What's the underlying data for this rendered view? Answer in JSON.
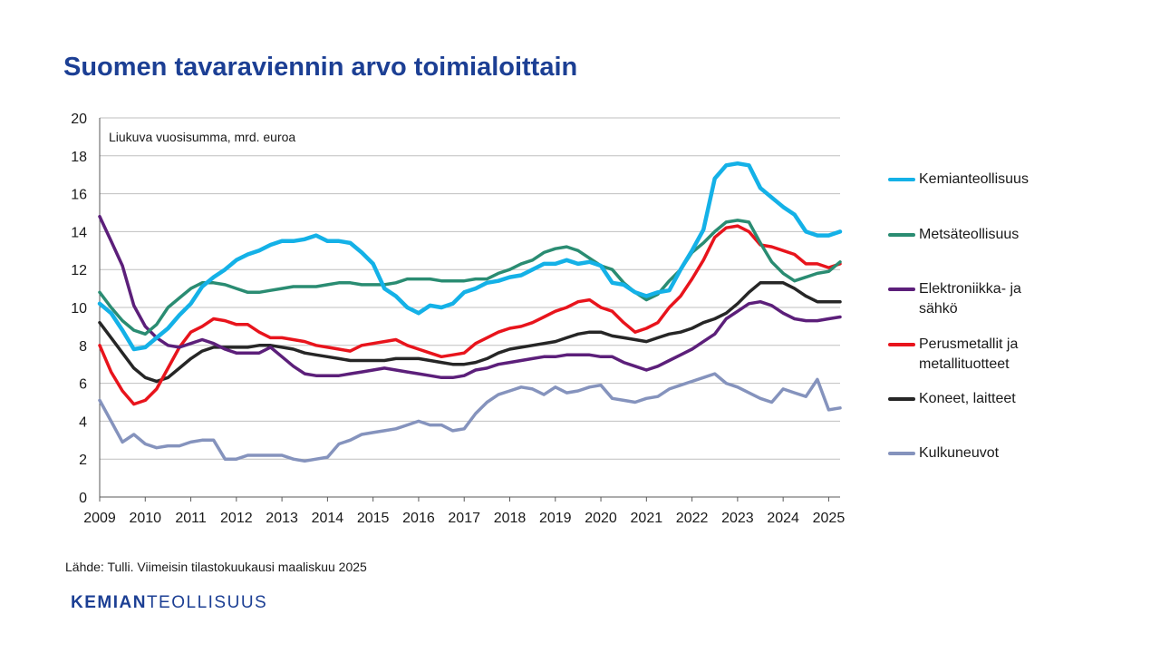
{
  "title": "Suomen tavaraviennin arvo toimialoittain",
  "source": "Lähde: Tulli. Viimeisin tilastokuukausi maaliskuu 2025",
  "logo": {
    "bold": "KEMIAN",
    "light": "TEOLLISUUS"
  },
  "chart_data": {
    "type": "line",
    "title": "Suomen tavaraviennin arvo toimialoittain",
    "annotation": "Liukuva vuosisumma, mrd. euroa",
    "ylim": [
      0,
      20
    ],
    "yticks": [
      "0",
      "2",
      "4",
      "6",
      "8",
      "10",
      "12",
      "14",
      "16",
      "18",
      "20"
    ],
    "xlim": [
      2009.0,
      2025.25
    ],
    "xticks": [
      "2009",
      "2010",
      "2011",
      "2012",
      "2013",
      "2014",
      "2015",
      "2016",
      "2017",
      "2018",
      "2019",
      "2020",
      "2021",
      "2022",
      "2023",
      "2024",
      "2025"
    ],
    "grid": true,
    "legend_position": "right",
    "series": [
      {
        "name": "Kemianteollisuus",
        "color": "#14b1e7",
        "x": [
          2009.0,
          2009.25,
          2009.5,
          2009.75,
          2010.0,
          2010.25,
          2010.5,
          2010.75,
          2011.0,
          2011.25,
          2011.5,
          2011.75,
          2012.0,
          2012.25,
          2012.5,
          2012.75,
          2013.0,
          2013.25,
          2013.5,
          2013.75,
          2014.0,
          2014.25,
          2014.5,
          2014.75,
          2015.0,
          2015.25,
          2015.5,
          2015.75,
          2016.0,
          2016.25,
          2016.5,
          2016.75,
          2017.0,
          2017.25,
          2017.5,
          2017.75,
          2018.0,
          2018.25,
          2018.5,
          2018.75,
          2019.0,
          2019.25,
          2019.5,
          2019.75,
          2020.0,
          2020.25,
          2020.5,
          2020.75,
          2021.0,
          2021.25,
          2021.5,
          2021.75,
          2022.0,
          2022.25,
          2022.5,
          2022.75,
          2023.0,
          2023.25,
          2023.5,
          2023.75,
          2024.0,
          2024.25,
          2024.5,
          2024.75,
          2025.0,
          2025.25
        ],
        "values": [
          10.2,
          9.7,
          8.8,
          7.8,
          7.9,
          8.4,
          8.9,
          9.6,
          10.2,
          11.1,
          11.6,
          12.0,
          12.5,
          12.8,
          13.0,
          13.3,
          13.5,
          13.5,
          13.6,
          13.8,
          13.5,
          13.5,
          13.4,
          12.9,
          12.3,
          11.0,
          10.6,
          10.0,
          9.7,
          10.1,
          10.0,
          10.2,
          10.8,
          11.0,
          11.3,
          11.4,
          11.6,
          11.7,
          12.0,
          12.3,
          12.3,
          12.5,
          12.3,
          12.4,
          12.2,
          11.3,
          11.2,
          10.8,
          10.6,
          10.8,
          10.9,
          12.0,
          13.0,
          14.1,
          16.8,
          17.5,
          17.6,
          17.5,
          16.3,
          15.8,
          15.3,
          14.9,
          14.0,
          13.8,
          13.8,
          14.0
        ]
      },
      {
        "name": "Metsäteollisuus",
        "color": "#2a8c72",
        "x": [
          2009.0,
          2009.25,
          2009.5,
          2009.75,
          2010.0,
          2010.25,
          2010.5,
          2010.75,
          2011.0,
          2011.25,
          2011.5,
          2011.75,
          2012.0,
          2012.25,
          2012.5,
          2012.75,
          2013.0,
          2013.25,
          2013.5,
          2013.75,
          2014.0,
          2014.25,
          2014.5,
          2014.75,
          2015.0,
          2015.25,
          2015.5,
          2015.75,
          2016.0,
          2016.25,
          2016.5,
          2016.75,
          2017.0,
          2017.25,
          2017.5,
          2017.75,
          2018.0,
          2018.25,
          2018.5,
          2018.75,
          2019.0,
          2019.25,
          2019.5,
          2019.75,
          2020.0,
          2020.25,
          2020.5,
          2020.75,
          2021.0,
          2021.25,
          2021.5,
          2021.75,
          2022.0,
          2022.25,
          2022.5,
          2022.75,
          2023.0,
          2023.25,
          2023.5,
          2023.75,
          2024.0,
          2024.25,
          2024.5,
          2024.75,
          2025.0,
          2025.25
        ],
        "values": [
          10.8,
          10.0,
          9.3,
          8.8,
          8.6,
          9.1,
          10.0,
          10.5,
          11.0,
          11.3,
          11.3,
          11.2,
          11.0,
          10.8,
          10.8,
          10.9,
          11.0,
          11.1,
          11.1,
          11.1,
          11.2,
          11.3,
          11.3,
          11.2,
          11.2,
          11.2,
          11.3,
          11.5,
          11.5,
          11.5,
          11.4,
          11.4,
          11.4,
          11.5,
          11.5,
          11.8,
          12.0,
          12.3,
          12.5,
          12.9,
          13.1,
          13.2,
          13.0,
          12.6,
          12.2,
          12.0,
          11.3,
          10.8,
          10.4,
          10.7,
          11.4,
          12.0,
          12.9,
          13.4,
          14.0,
          14.5,
          14.6,
          14.5,
          13.4,
          12.4,
          11.8,
          11.4,
          11.6,
          11.8,
          11.9,
          12.4
        ]
      },
      {
        "name": "Elektroniikka- ja sähkö",
        "color": "#5c1f7a",
        "x": [
          2009.0,
          2009.25,
          2009.5,
          2009.75,
          2010.0,
          2010.25,
          2010.5,
          2010.75,
          2011.0,
          2011.25,
          2011.5,
          2011.75,
          2012.0,
          2012.25,
          2012.5,
          2012.75,
          2013.0,
          2013.25,
          2013.5,
          2013.75,
          2014.0,
          2014.25,
          2014.5,
          2014.75,
          2015.0,
          2015.25,
          2015.5,
          2015.75,
          2016.0,
          2016.25,
          2016.5,
          2016.75,
          2017.0,
          2017.25,
          2017.5,
          2017.75,
          2018.0,
          2018.25,
          2018.5,
          2018.75,
          2019.0,
          2019.25,
          2019.5,
          2019.75,
          2020.0,
          2020.25,
          2020.5,
          2020.75,
          2021.0,
          2021.25,
          2021.5,
          2021.75,
          2022.0,
          2022.25,
          2022.5,
          2022.75,
          2023.0,
          2023.25,
          2023.5,
          2023.75,
          2024.0,
          2024.25,
          2024.5,
          2024.75,
          2025.0,
          2025.25
        ],
        "values": [
          14.8,
          13.5,
          12.2,
          10.1,
          9.0,
          8.4,
          8.0,
          7.9,
          8.1,
          8.3,
          8.1,
          7.8,
          7.6,
          7.6,
          7.6,
          7.9,
          7.4,
          6.9,
          6.5,
          6.4,
          6.4,
          6.4,
          6.5,
          6.6,
          6.7,
          6.8,
          6.7,
          6.6,
          6.5,
          6.4,
          6.3,
          6.3,
          6.4,
          6.7,
          6.8,
          7.0,
          7.1,
          7.2,
          7.3,
          7.4,
          7.4,
          7.5,
          7.5,
          7.5,
          7.4,
          7.4,
          7.1,
          6.9,
          6.7,
          6.9,
          7.2,
          7.5,
          7.8,
          8.2,
          8.6,
          9.4,
          9.8,
          10.2,
          10.3,
          10.1,
          9.7,
          9.4,
          9.3,
          9.3,
          9.4,
          9.5
        ]
      },
      {
        "name": "Perusmetallit ja metallituotteet",
        "color": "#e8141c",
        "x": [
          2009.0,
          2009.25,
          2009.5,
          2009.75,
          2010.0,
          2010.25,
          2010.5,
          2010.75,
          2011.0,
          2011.25,
          2011.5,
          2011.75,
          2012.0,
          2012.25,
          2012.5,
          2012.75,
          2013.0,
          2013.25,
          2013.5,
          2013.75,
          2014.0,
          2014.25,
          2014.5,
          2014.75,
          2015.0,
          2015.25,
          2015.5,
          2015.75,
          2016.0,
          2016.25,
          2016.5,
          2016.75,
          2017.0,
          2017.25,
          2017.5,
          2017.75,
          2018.0,
          2018.25,
          2018.5,
          2018.75,
          2019.0,
          2019.25,
          2019.5,
          2019.75,
          2020.0,
          2020.25,
          2020.5,
          2020.75,
          2021.0,
          2021.25,
          2021.5,
          2021.75,
          2022.0,
          2022.25,
          2022.5,
          2022.75,
          2023.0,
          2023.25,
          2023.5,
          2023.75,
          2024.0,
          2024.25,
          2024.5,
          2024.75,
          2025.0,
          2025.25
        ],
        "values": [
          8.0,
          6.6,
          5.6,
          4.9,
          5.1,
          5.7,
          6.8,
          7.9,
          8.7,
          9.0,
          9.4,
          9.3,
          9.1,
          9.1,
          8.7,
          8.4,
          8.4,
          8.3,
          8.2,
          8.0,
          7.9,
          7.8,
          7.7,
          8.0,
          8.1,
          8.2,
          8.3,
          8.0,
          7.8,
          7.6,
          7.4,
          7.5,
          7.6,
          8.1,
          8.4,
          8.7,
          8.9,
          9.0,
          9.2,
          9.5,
          9.8,
          10.0,
          10.3,
          10.4,
          10.0,
          9.8,
          9.2,
          8.7,
          8.9,
          9.2,
          10.0,
          10.6,
          11.5,
          12.5,
          13.7,
          14.2,
          14.3,
          14.0,
          13.3,
          13.2,
          13.0,
          12.8,
          12.3,
          12.3,
          12.1,
          12.3
        ]
      },
      {
        "name": "Koneet, laitteet",
        "color": "#262626",
        "x": [
          2009.0,
          2009.25,
          2009.5,
          2009.75,
          2010.0,
          2010.25,
          2010.5,
          2010.75,
          2011.0,
          2011.25,
          2011.5,
          2011.75,
          2012.0,
          2012.25,
          2012.5,
          2012.75,
          2013.0,
          2013.25,
          2013.5,
          2013.75,
          2014.0,
          2014.25,
          2014.5,
          2014.75,
          2015.0,
          2015.25,
          2015.5,
          2015.75,
          2016.0,
          2016.25,
          2016.5,
          2016.75,
          2017.0,
          2017.25,
          2017.5,
          2017.75,
          2018.0,
          2018.25,
          2018.5,
          2018.75,
          2019.0,
          2019.25,
          2019.5,
          2019.75,
          2020.0,
          2020.25,
          2020.5,
          2020.75,
          2021.0,
          2021.25,
          2021.5,
          2021.75,
          2022.0,
          2022.25,
          2022.5,
          2022.75,
          2023.0,
          2023.25,
          2023.5,
          2023.75,
          2024.0,
          2024.25,
          2024.5,
          2024.75,
          2025.0,
          2025.25
        ],
        "values": [
          9.2,
          8.4,
          7.6,
          6.8,
          6.3,
          6.1,
          6.3,
          6.8,
          7.3,
          7.7,
          7.9,
          7.9,
          7.9,
          7.9,
          8.0,
          8.0,
          7.9,
          7.8,
          7.6,
          7.5,
          7.4,
          7.3,
          7.2,
          7.2,
          7.2,
          7.2,
          7.3,
          7.3,
          7.3,
          7.2,
          7.1,
          7.0,
          7.0,
          7.1,
          7.3,
          7.6,
          7.8,
          7.9,
          8.0,
          8.1,
          8.2,
          8.4,
          8.6,
          8.7,
          8.7,
          8.5,
          8.4,
          8.3,
          8.2,
          8.4,
          8.6,
          8.7,
          8.9,
          9.2,
          9.4,
          9.7,
          10.2,
          10.8,
          11.3,
          11.3,
          11.3,
          11.0,
          10.6,
          10.3,
          10.3,
          10.3
        ]
      },
      {
        "name": "Kulkuneuvot",
        "color": "#8593bd",
        "x": [
          2009.0,
          2009.25,
          2009.5,
          2009.75,
          2010.0,
          2010.25,
          2010.5,
          2010.75,
          2011.0,
          2011.25,
          2011.5,
          2011.75,
          2012.0,
          2012.25,
          2012.5,
          2012.75,
          2013.0,
          2013.25,
          2013.5,
          2013.75,
          2014.0,
          2014.25,
          2014.5,
          2014.75,
          2015.0,
          2015.25,
          2015.5,
          2015.75,
          2016.0,
          2016.25,
          2016.5,
          2016.75,
          2017.0,
          2017.25,
          2017.5,
          2017.75,
          2018.0,
          2018.25,
          2018.5,
          2018.75,
          2019.0,
          2019.25,
          2019.5,
          2019.75,
          2020.0,
          2020.25,
          2020.5,
          2020.75,
          2021.0,
          2021.25,
          2021.5,
          2021.75,
          2022.0,
          2022.25,
          2022.5,
          2022.75,
          2023.0,
          2023.25,
          2023.5,
          2023.75,
          2024.0,
          2024.25,
          2024.5,
          2024.75,
          2025.0,
          2025.25
        ],
        "values": [
          5.1,
          4.0,
          2.9,
          3.3,
          2.8,
          2.6,
          2.7,
          2.7,
          2.9,
          3.0,
          3.0,
          2.0,
          2.0,
          2.2,
          2.2,
          2.2,
          2.2,
          2.0,
          1.9,
          2.0,
          2.1,
          2.8,
          3.0,
          3.3,
          3.4,
          3.5,
          3.6,
          3.8,
          4.0,
          3.8,
          3.8,
          3.5,
          3.6,
          4.4,
          5.0,
          5.4,
          5.6,
          5.8,
          5.7,
          5.4,
          5.8,
          5.5,
          5.6,
          5.8,
          5.9,
          5.2,
          5.1,
          5.0,
          5.2,
          5.3,
          5.7,
          5.9,
          6.1,
          6.3,
          6.5,
          6.0,
          5.8,
          5.5,
          5.2,
          5.0,
          5.7,
          5.5,
          5.3,
          6.2,
          4.6,
          4.7
        ]
      }
    ]
  }
}
